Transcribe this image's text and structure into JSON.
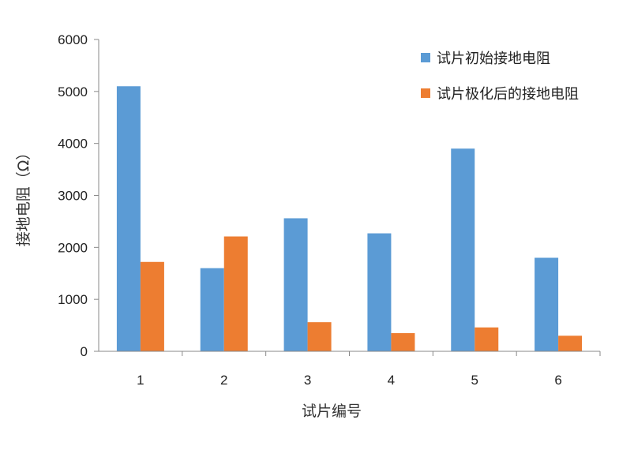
{
  "chart_data": {
    "type": "bar",
    "categories": [
      "1",
      "2",
      "3",
      "4",
      "5",
      "6"
    ],
    "series": [
      {
        "name": "试片初始接地电阻",
        "color": "#5B9BD5",
        "values": [
          5100,
          1600,
          2560,
          2270,
          3900,
          1800
        ]
      },
      {
        "name": "试片极化后的接地电阻",
        "color": "#ED7D31",
        "values": [
          1720,
          2210,
          560,
          350,
          460,
          300
        ]
      }
    ],
    "xlabel": "试片编号",
    "ylabel": "接地电阻（Ω）",
    "ylim": [
      0,
      6000
    ],
    "yticks": [
      0,
      1000,
      2000,
      3000,
      4000,
      5000,
      6000
    ],
    "legend_position": "top-right",
    "grid": false
  }
}
